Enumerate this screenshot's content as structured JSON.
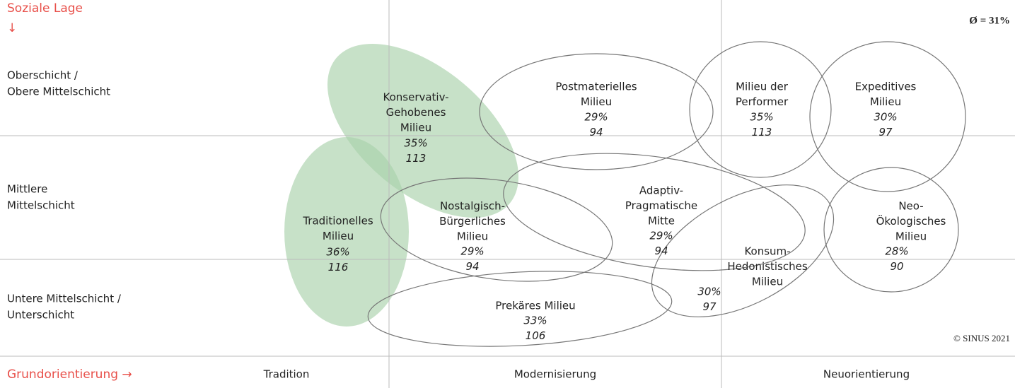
{
  "header": {
    "y_axis_title": "Soziale Lage",
    "y_arrow": "↓",
    "average": "Ø = 31%",
    "copyright": "© SINUS 2021"
  },
  "rows": [
    [
      "Oberschicht /",
      "Obere Mittelschicht"
    ],
    [
      "Mittlere",
      "Mittelschicht"
    ],
    [
      "Untere Mittelschicht /",
      "Unterschicht"
    ]
  ],
  "footer": {
    "x_axis_title": "Grundorientierung →",
    "columns": [
      "Tradition",
      "Modernisierung",
      "Neuorientierung"
    ]
  },
  "milieus": [
    {
      "name": [
        "Konservativ-",
        "Gehobenes",
        "Milieu"
      ],
      "percent": "35%",
      "index": 113
    },
    {
      "name": [
        "Postmaterielles",
        "Milieu"
      ],
      "percent": "29%",
      "index": 94
    },
    {
      "name": [
        "Milieu der",
        "Performer"
      ],
      "percent": "35%",
      "index": 113
    },
    {
      "name": [
        "Expeditives",
        "Milieu"
      ],
      "percent": "30%",
      "index": 97
    },
    {
      "name": [
        "Traditionelles",
        "Milieu"
      ],
      "percent": "36%",
      "index": 116
    },
    {
      "name": [
        "Nostalgisch-",
        "Bürgerliches",
        "Milieu"
      ],
      "percent": "29%",
      "index": 94
    },
    {
      "name": [
        "Adaptiv-",
        "Pragmatische",
        "Mitte"
      ],
      "percent": "29%",
      "index": 94
    },
    {
      "name": [
        "Neo-",
        "Ökologisches",
        "Milieu"
      ],
      "percent": "28%",
      "index": 90
    },
    {
      "name": [
        "Konsum-",
        "Hedonistisches",
        "Milieu"
      ],
      "percent": "30%",
      "index": 97
    },
    {
      "name": [
        "Prekäres Milieu"
      ],
      "percent": "33%",
      "index": 106
    }
  ]
}
